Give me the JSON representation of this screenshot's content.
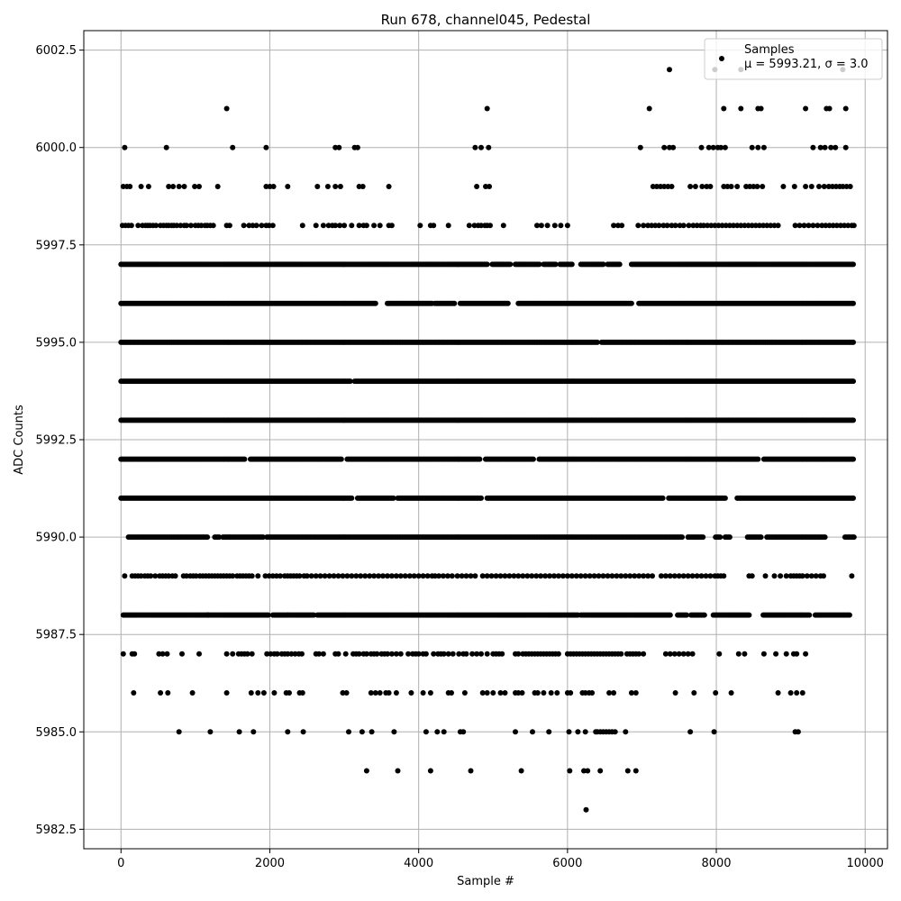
{
  "chart_data": {
    "type": "scatter",
    "title": "Run 678, channel045, Pedestal",
    "xlabel": "Sample #",
    "ylabel": "ADC Counts",
    "xlim": [
      -500,
      10300
    ],
    "ylim": [
      5982.0,
      6003.0
    ],
    "xticks": [
      0,
      2000,
      4000,
      6000,
      8000,
      10000
    ],
    "xtick_labels": [
      "0",
      "2000",
      "4000",
      "6000",
      "8000",
      "10000"
    ],
    "yticks": [
      5982.5,
      5985.0,
      5987.5,
      5990.0,
      5992.5,
      5995.0,
      5997.5,
      6000.0,
      6002.5
    ],
    "ytick_labels": [
      "5982.5",
      "5985.0",
      "5987.5",
      "5990.0",
      "5992.5",
      "5995.0",
      "5997.5",
      "6000.0",
      "6002.5"
    ],
    "grid": true,
    "legend_position": "top-right",
    "marker_color": "#000000",
    "series": [
      {
        "name": "Samples",
        "stats_label": "μ = 5993.21, σ = 3.0",
        "levels": [
          {
            "y": 6002,
            "x": [
              7370,
              7980,
              8330,
              9700
            ]
          },
          {
            "y": 6001,
            "x": [
              1420,
              4920,
              7100,
              8100,
              8330,
              8560,
              8600,
              9200,
              9480,
              9520,
              9740
            ]
          },
          {
            "y": 6000,
            "x": [
              50,
              610,
              1500,
              1950,
              2880,
              2930,
              3140,
              3180,
              4760,
              4840,
              4940,
              6980,
              7300,
              7370,
              7420,
              7800,
              7900,
              7960,
              8020,
              8060,
              8120,
              8480,
              8560,
              8640,
              9300,
              9400,
              9460,
              9540,
              9600,
              9740
            ]
          },
          {
            "y": 5999,
            "x": [
              30,
              80,
              120,
              270,
              370,
              640,
              700,
              780,
              850,
              990,
              1050,
              1300,
              1950,
              2000,
              2050,
              2240,
              2640,
              2780,
              2880,
              2950,
              3200,
              3250,
              3600,
              4780,
              4900,
              4950,
              7150,
              7200,
              7250,
              7300,
              7350,
              7400,
              7650,
              7720,
              7810,
              7870,
              7920,
              8100,
              8150,
              8200,
              8280,
              8400,
              8450,
              8500,
              8550,
              8620,
              8900,
              9050,
              9200,
              9280,
              9380,
              9450,
              9510,
              9560,
              9610,
              9660,
              9700,
              9750,
              9800
            ]
          },
          {
            "y": 5998,
            "x": [
              20,
              60,
              100,
              140,
              230,
              290,
              330,
              360,
              390,
              430,
              470,
              530,
              570,
              610,
              640,
              680,
              710,
              750,
              800,
              850,
              880,
              940,
              1000,
              1040,
              1080,
              1130,
              1160,
              1200,
              1240,
              1420,
              1460,
              1650,
              1720,
              1770,
              1820,
              1890,
              1950,
              1990,
              2040,
              2440,
              2620,
              2720,
              2790,
              2840,
              2880,
              2940,
              3000,
              3100,
              3200,
              3260,
              3300,
              3400,
              3480,
              3600,
              3640,
              4020,
              4160,
              4200,
              4400,
              4680,
              4750,
              4800,
              4840,
              4890,
              4920,
              4960,
              5140,
              5590,
              5650,
              5730,
              5830,
              5910,
              6000,
              6620,
              6680,
              6730,
              6950,
              7020,
              7080,
              7130,
              7180,
              7230,
              7290,
              7340,
              7400,
              7450,
              7510,
              7560,
              7630,
              7690,
              7740,
              7790,
              7830,
              7880,
              7930,
              7980,
              8030,
              8080,
              8130,
              8180,
              8230,
              8280,
              8330,
              8380,
              8430,
              8480,
              8530,
              8580,
              8630,
              8680,
              8730,
              8780,
              8830,
              9060,
              9120,
              9180,
              9240,
              9300,
              9360,
              9420,
              9470,
              9520,
              9570,
              9620,
              9670,
              9720,
              9770,
              9820,
              9850
            ]
          }
        ],
        "dense_levels": [
          {
            "y": 5997,
            "ranges": [
              [
                0,
                4920
              ],
              [
                4990,
                5240
              ],
              [
                5300,
                5620
              ],
              [
                5680,
                5850
              ],
              [
                5900,
                6060
              ],
              [
                6180,
                6480
              ],
              [
                6540,
                6700
              ],
              [
                6860,
                9850
              ]
            ]
          },
          {
            "y": 5996,
            "ranges": [
              [
                0,
                3420
              ],
              [
                3580,
                4180
              ],
              [
                4220,
                4480
              ],
              [
                4560,
                5200
              ],
              [
                5340,
                6860
              ],
              [
                6960,
                9850
              ]
            ]
          },
          {
            "y": 5995,
            "ranges": [
              [
                0,
                6400
              ],
              [
                6460,
                9850
              ]
            ]
          },
          {
            "y": 5994,
            "ranges": [
              [
                0,
                3080
              ],
              [
                3140,
                9850
              ]
            ]
          },
          {
            "y": 5993,
            "ranges": [
              [
                0,
                9850
              ]
            ]
          },
          {
            "y": 5992,
            "ranges": [
              [
                0,
                1660
              ],
              [
                1740,
                2960
              ],
              [
                3040,
                4830
              ],
              [
                4900,
                5540
              ],
              [
                5620,
                8560
              ],
              [
                8640,
                9850
              ]
            ]
          },
          {
            "y": 5991,
            "ranges": [
              [
                0,
                3100
              ],
              [
                3180,
                3660
              ],
              [
                3720,
                4840
              ],
              [
                4920,
                7290
              ],
              [
                7360,
                8130
              ],
              [
                8280,
                9850
              ]
            ]
          },
          {
            "y": 5990,
            "ranges": [
              [
                100,
                1160
              ],
              [
                1260,
                1320
              ],
              [
                1370,
                1910
              ],
              [
                1960,
                7550
              ],
              [
                7620,
                7830
              ],
              [
                7990,
                8060
              ],
              [
                8120,
                8180
              ],
              [
                8420,
                8600
              ],
              [
                8680,
                9460
              ],
              [
                9730,
                9850
              ]
            ]
          },
          {
            "y": 5988,
            "ranges": [
              [
                30,
                1180
              ],
              [
                1160,
                1990
              ],
              [
                2040,
                2240
              ],
              [
                2250,
                2590
              ],
              [
                2640,
                6140
              ],
              [
                6180,
                7380
              ],
              [
                7480,
                7600
              ],
              [
                7660,
                7850
              ],
              [
                7960,
                8450
              ],
              [
                8630,
                9250
              ],
              [
                9330,
                9800
              ]
            ]
          }
        ],
        "sparse_levels": [
          {
            "y": 5989,
            "x": [
              50,
              150,
              190,
              230,
              270,
              320,
              360,
              400,
              460,
              520,
              560,
              600,
              640,
              690,
              730,
              840,
              880,
              930,
              970,
              1010,
              1060,
              1100,
              1140,
              1180,
              1220,
              1260,
              1300,
              1340,
              1380,
              1420,
              1460,
              1500,
              1560,
              1600,
              1640,
              1680,
              1720,
              1760,
              1840,
              1940,
              1990,
              2040,
              2090,
              2140,
              2200,
              2240,
              2280,
              2320,
              2360,
              2400,
              2460,
              2500,
              2560,
              2620,
              2680,
              2740,
              2800,
              2860,
              2920,
              2980,
              3040,
              3100,
              3160,
              3220,
              3280,
              3340,
              3400,
              3460,
              3520,
              3580,
              3640,
              3700,
              3760,
              3820,
              3880,
              3940,
              4000,
              4060,
              4120,
              4180,
              4220,
              4270,
              4330,
              4390,
              4450,
              4520,
              4580,
              4640,
              4700,
              4760,
              4860,
              4920,
              4980,
              5040,
              5100,
              5160,
              5220,
              5280,
              5340,
              5400,
              5460,
              5520,
              5580,
              5640,
              5700,
              5760,
              5820,
              5880,
              5940,
              6000,
              6060,
              6120,
              6180,
              6240,
              6300,
              6360,
              6420,
              6480,
              6540,
              6600,
              6660,
              6720,
              6780,
              6840,
              6900,
              6960,
              7020,
              7080,
              7140,
              7260,
              7320,
              7380,
              7440,
              7500,
              7560,
              7620,
              7680,
              7740,
              7800,
              7860,
              7920,
              7980,
              8020,
              8060,
              8100,
              8440,
              8480,
              8660,
              8780,
              8860,
              8940,
              9000,
              9040,
              9080,
              9120,
              9160,
              9220,
              9280,
              9340,
              9400,
              9440,
              9820
            ]
          },
          {
            "y": 5987,
            "x": [
              30,
              150,
              180,
              510,
              560,
              620,
              820,
              1050,
              1420,
              1500,
              1580,
              1620,
              1660,
              1700,
              1760,
              1960,
              2010,
              2060,
              2100,
              2160,
              2200,
              2240,
              2290,
              2340,
              2390,
              2430,
              2620,
              2660,
              2720,
              2880,
              2920,
              3020,
              3120,
              3160,
              3200,
              3260,
              3300,
              3360,
              3400,
              3440,
              3500,
              3540,
              3580,
              3640,
              3700,
              3760,
              3860,
              3920,
              3960,
              4000,
              4060,
              4100,
              4200,
              4260,
              4300,
              4340,
              4400,
              4460,
              4540,
              4600,
              4640,
              4720,
              4780,
              4840,
              4920,
              5000,
              5040,
              5080,
              5120,
              5300,
              5340,
              5400,
              5440,
              5480,
              5520,
              5560,
              5600,
              5640,
              5680,
              5720,
              5760,
              5800,
              5840,
              5880,
              6000,
              6040,
              6080,
              6120,
              6160,
              6200,
              6240,
              6280,
              6320,
              6360,
              6400,
              6440,
              6480,
              6520,
              6560,
              6600,
              6640,
              6680,
              6720,
              6800,
              6840,
              6880,
              6920,
              6960,
              7020,
              7320,
              7380,
              7440,
              7500,
              7560,
              7620,
              7680,
              8040,
              8300,
              8380,
              8640,
              8800,
              8940,
              9040,
              9080,
              9200
            ]
          },
          {
            "y": 5986,
            "x": [
              170,
              530,
              630,
              960,
              1420,
              1750,
              1840,
              1920,
              2060,
              2220,
              2260,
              2400,
              2440,
              2980,
              3030,
              3360,
              3420,
              3480,
              3560,
              3600,
              3700,
              3900,
              4060,
              4160,
              4400,
              4440,
              4620,
              4860,
              4920,
              5000,
              5100,
              5160,
              5300,
              5340,
              5390,
              5560,
              5600,
              5680,
              5780,
              5860,
              6000,
              6040,
              6200,
              6240,
              6290,
              6330,
              6560,
              6620,
              6860,
              6920,
              7450,
              7700,
              7990,
              8200,
              8830,
              9000,
              9080,
              9160
            ]
          },
          {
            "y": 5985,
            "x": [
              780,
              1200,
              1590,
              1780,
              2240,
              2450,
              3060,
              3240,
              3370,
              3670,
              4100,
              4250,
              4340,
              4560,
              4600,
              5300,
              5530,
              5750,
              6020,
              6140,
              6240,
              6380,
              6400,
              6440,
              6480,
              6520,
              6560,
              6600,
              6640,
              6780,
              7650,
              7970,
              9060,
              9100
            ]
          },
          {
            "y": 5984,
            "x": [
              3300,
              3720,
              4160,
              4700,
              5380,
              6030,
              6220,
              6270,
              6440,
              6810,
              6920
            ]
          },
          {
            "y": 5983,
            "x": [
              6250
            ]
          }
        ]
      }
    ]
  }
}
